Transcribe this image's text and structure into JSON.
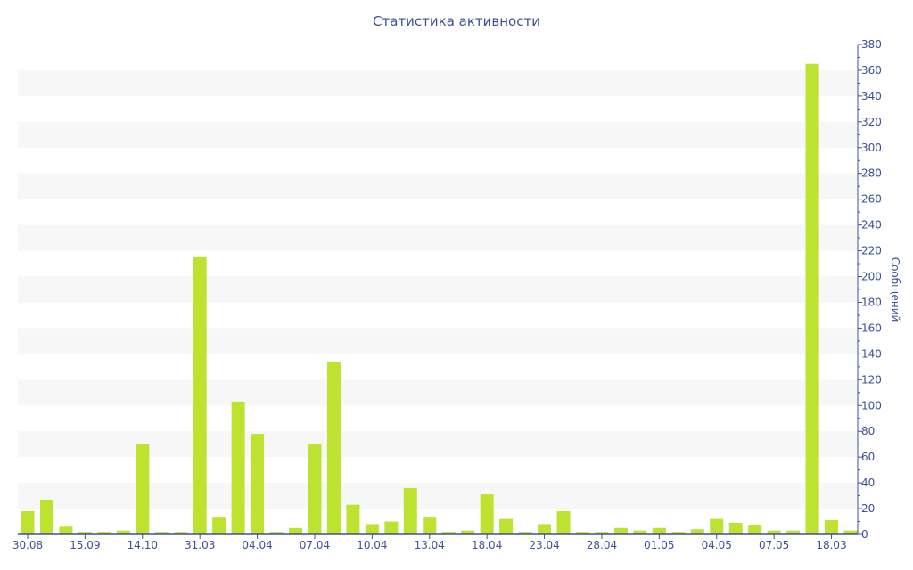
{
  "chart_data": {
    "type": "bar",
    "title": "Статистика активности",
    "xlabel": "",
    "ylabel": "Сообщений",
    "ylim": [
      0,
      380
    ],
    "ytick_step": 20,
    "grid": "alternating horizontal bands",
    "y_axis_side": "right",
    "bar_color": "#bde22f",
    "text_color": "#3d4f9a",
    "categories": [
      "30.08",
      "",
      "",
      "15.09",
      "",
      "",
      "14.10",
      "",
      "",
      "31.03",
      "",
      "",
      "04.04",
      "",
      "",
      "07.04",
      "",
      "",
      "10.04",
      "",
      "",
      "13.04",
      "",
      "",
      "18.04",
      "",
      "",
      "23.04",
      "",
      "",
      "28.04",
      "",
      "",
      "01.05",
      "",
      "",
      "04.05",
      "",
      "",
      "07.05",
      "",
      "",
      "18.03",
      ""
    ],
    "values": [
      18,
      27,
      6,
      2,
      2,
      3,
      70,
      2,
      2,
      215,
      13,
      103,
      78,
      2,
      5,
      70,
      134,
      23,
      8,
      10,
      36,
      13,
      2,
      3,
      31,
      12,
      2,
      8,
      18,
      2,
      2,
      5,
      3,
      5,
      2,
      4,
      12,
      9,
      7,
      3,
      3,
      365,
      11,
      3
    ]
  }
}
